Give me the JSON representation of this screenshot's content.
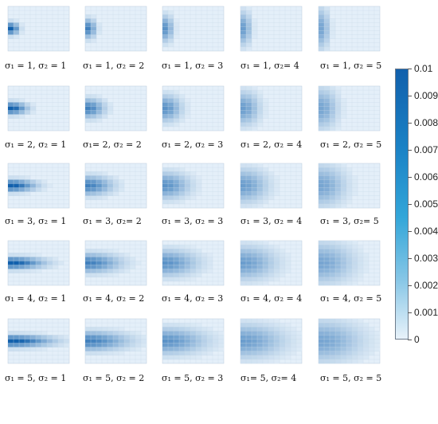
{
  "chart_data": {
    "type": "heatmap",
    "panels": [
      {
        "sigma1": 1,
        "sigma2": 1,
        "caption": "σ₁ = 1, σ₂ = 1"
      },
      {
        "sigma1": 1,
        "sigma2": 2,
        "caption": "σ₁ = 1, σ₂ = 2"
      },
      {
        "sigma1": 1,
        "sigma2": 3,
        "caption": "σ₁ = 1, σ₂ = 3"
      },
      {
        "sigma1": 1,
        "sigma2": 4,
        "caption": "σ₁ = 1, σ₂= 4"
      },
      {
        "sigma1": 1,
        "sigma2": 5,
        "caption": "σ₁ = 1, σ₂ = 5"
      },
      {
        "sigma1": 2,
        "sigma2": 1,
        "caption": "σ₁ = 2, σ₂ = 1"
      },
      {
        "sigma1": 2,
        "sigma2": 2,
        "caption": "σ₁= 2, σ₂ = 2"
      },
      {
        "sigma1": 2,
        "sigma2": 3,
        "caption": "σ₁ = 2, σ₂ = 3"
      },
      {
        "sigma1": 2,
        "sigma2": 4,
        "caption": "σ₁ = 2, σ₂ = 4"
      },
      {
        "sigma1": 2,
        "sigma2": 5,
        "caption": "σ₁ = 2, σ₂ = 5"
      },
      {
        "sigma1": 3,
        "sigma2": 1,
        "caption": "σ₁ = 3, σ₂ = 1"
      },
      {
        "sigma1": 3,
        "sigma2": 2,
        "caption": "σ₁ = 3, σ₂= 2"
      },
      {
        "sigma1": 3,
        "sigma2": 3,
        "caption": "σ₁ = 3, σ₂ = 3"
      },
      {
        "sigma1": 3,
        "sigma2": 4,
        "caption": "σ₁ = 3, σ₂ = 4"
      },
      {
        "sigma1": 3,
        "sigma2": 5,
        "caption": "σ₁ = 3, σ₂= 5"
      },
      {
        "sigma1": 4,
        "sigma2": 1,
        "caption": "σ₁ = 4, σ₂ = 1"
      },
      {
        "sigma1": 4,
        "sigma2": 2,
        "caption": "σ₁ = 4, σ₂ = 2"
      },
      {
        "sigma1": 4,
        "sigma2": 3,
        "caption": "σ₁ = 4, σ₂ = 3"
      },
      {
        "sigma1": 4,
        "sigma2": 4,
        "caption": "σ₁ = 4, σ₂ = 4"
      },
      {
        "sigma1": 4,
        "sigma2": 5,
        "caption": "σ₁ = 4, σ₂ = 5"
      },
      {
        "sigma1": 5,
        "sigma2": 1,
        "caption": "σ₁ = 5, σ₂ = 1"
      },
      {
        "sigma1": 5,
        "sigma2": 2,
        "caption": "σ₁ = 5, σ₂ = 2"
      },
      {
        "sigma1": 5,
        "sigma2": 3,
        "caption": "σ₁ = 5, σ₂ = 3"
      },
      {
        "sigma1": 5,
        "sigma2": 4,
        "caption": "σ₁= 5, σ₂= 4"
      },
      {
        "sigma1": 5,
        "sigma2": 5,
        "caption": "σ₁ = 5, σ₂ = 5"
      }
    ],
    "grid_rows": 11,
    "grid_cols": 11,
    "source_row": 5,
    "source_col": 0,
    "colorbar": {
      "min": 0,
      "max": 0.01,
      "ticks": [
        "0.01",
        "0.009",
        "0.008",
        "0.007",
        "0.006",
        "0.005",
        "0.004",
        "0.003",
        "0.002",
        "0.001",
        "0"
      ],
      "color_low": "#e8f2fa",
      "color_high": "#1160ac"
    }
  }
}
